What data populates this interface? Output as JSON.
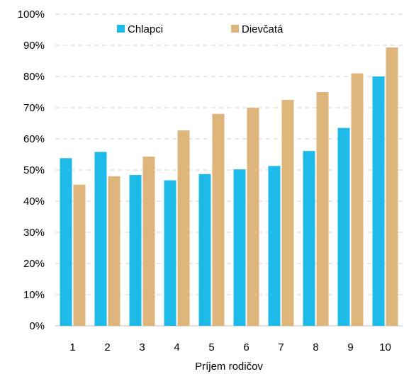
{
  "chart_data": {
    "type": "bar",
    "title": "",
    "xlabel": "Príjem rodičov",
    "ylabel": "",
    "categories": [
      "1",
      "2",
      "3",
      "4",
      "5",
      "6",
      "7",
      "8",
      "9",
      "10"
    ],
    "series": [
      {
        "name": "Chlapci",
        "color": "#1ebbe9",
        "values": [
          53.8,
          55.8,
          48.4,
          46.7,
          48.7,
          50.2,
          51.3,
          56.1,
          63.5,
          80.0
        ]
      },
      {
        "name": "Dievčatá",
        "color": "#deb67b",
        "values": [
          45.3,
          48.0,
          54.3,
          62.7,
          68.0,
          70.0,
          72.5,
          75.0,
          81.0,
          89.3
        ]
      }
    ],
    "ylim": [
      0,
      100
    ],
    "yticks": [
      "0%",
      "10%",
      "20%",
      "30%",
      "40%",
      "50%",
      "60%",
      "70%",
      "80%",
      "90%",
      "100%"
    ],
    "grid": true,
    "legend_position": "top-left"
  }
}
